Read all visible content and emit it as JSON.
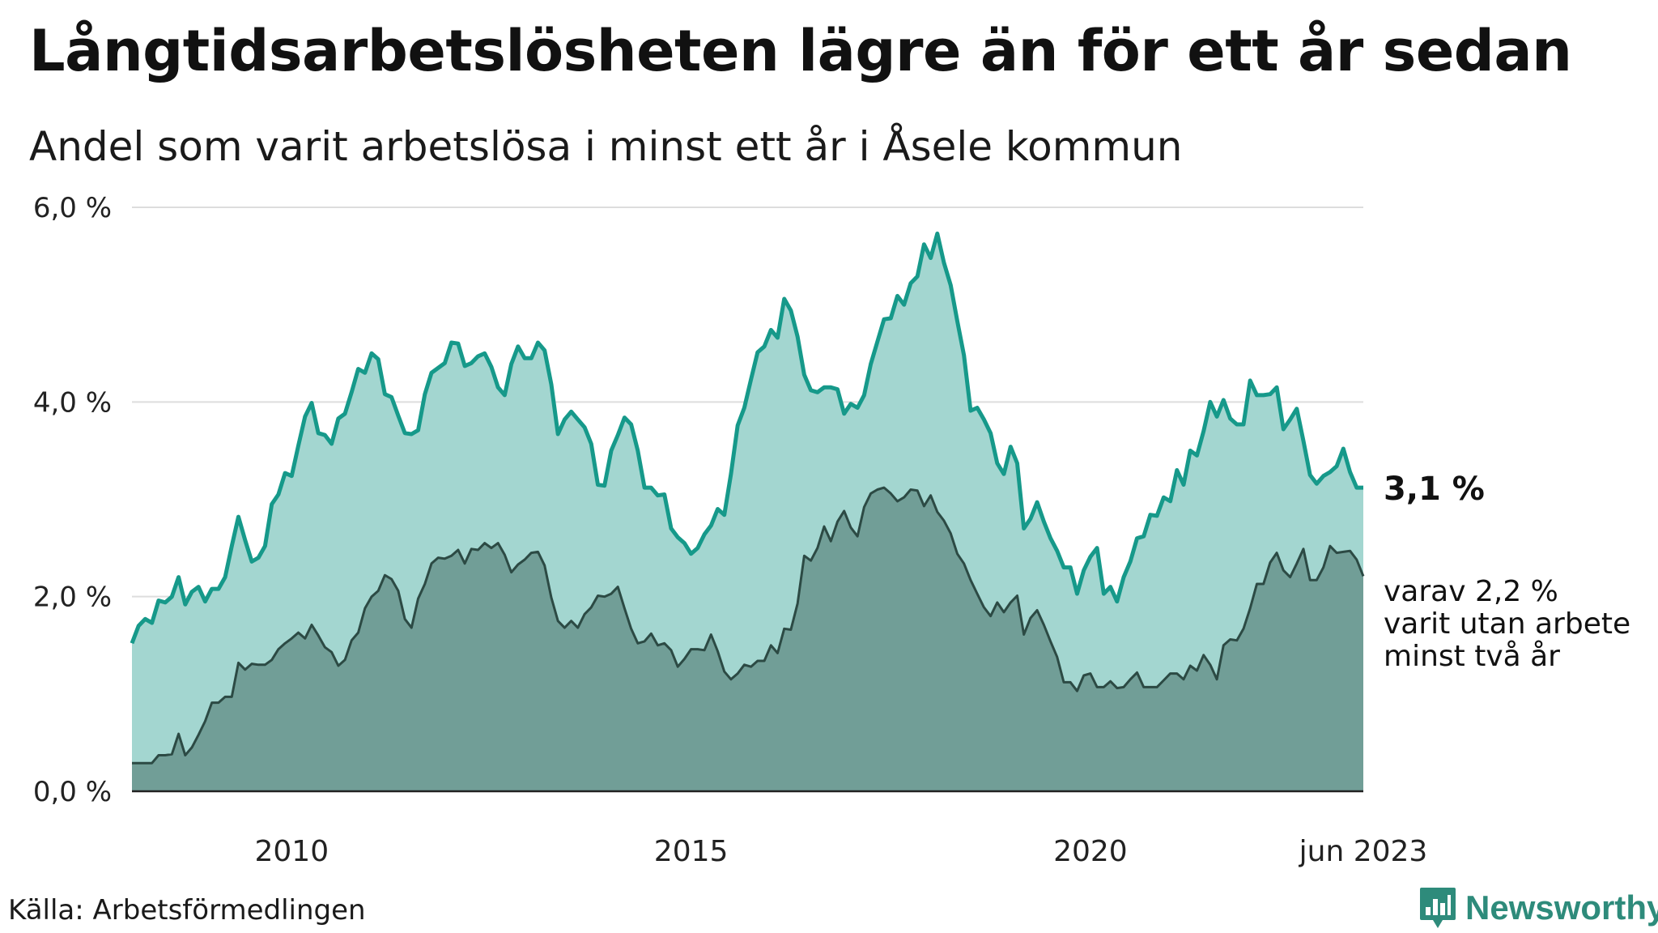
{
  "header": {
    "title": "Långtidsarbetslösheten lägre än för ett år sedan",
    "subtitle": "Andel som varit arbetslösa i minst ett år i Åsele kommun"
  },
  "footer": {
    "source": "Källa: Arbetsförmedlingen",
    "brand": "Newsworthy"
  },
  "colors": {
    "series1_line": "#16998a",
    "series1_fill": "#a3d6d0",
    "series2_line": "#2c4a44",
    "series2_fill": "#719e97",
    "grid": "#dddddd",
    "brand": "#2e8b7b"
  },
  "icons": {
    "brand_logo": "bar-chart-badge-icon"
  },
  "chart_data": {
    "type": "area",
    "x_start": "2008-01",
    "x_end": "2023-06",
    "ylim": [
      0,
      6
    ],
    "y_ticks": [
      "0,0 %",
      "2,0 %",
      "4,0 %",
      "6,0 %"
    ],
    "x_ticks": [
      {
        "label": "2010",
        "date": "2010-01"
      },
      {
        "label": "2015",
        "date": "2015-01"
      },
      {
        "label": "2020",
        "date": "2020-01"
      },
      {
        "label": "jun 2023",
        "date": "2023-06"
      }
    ],
    "grid": true,
    "annotations": {
      "series1_end_label": "3,1 %",
      "series2_end_label": [
        "varav 2,2 %",
        "varit utan arbete",
        "minst två år"
      ]
    },
    "series": [
      {
        "values": [
          1.52,
          1.7,
          1.77,
          1.73,
          1.96,
          1.94,
          2.0,
          2.2,
          1.92,
          2.05,
          2.1,
          1.95,
          2.08,
          2.08,
          2.2,
          2.52,
          2.82,
          2.58,
          2.36,
          2.4,
          2.52,
          2.95,
          3.05,
          3.27,
          3.24,
          3.55,
          3.85,
          3.99,
          3.68,
          3.66,
          3.57,
          3.83,
          3.88,
          4.1,
          4.34,
          4.3,
          4.5,
          4.44,
          4.08,
          4.05,
          3.86,
          3.68,
          3.67,
          3.71,
          4.08,
          4.3,
          4.35,
          4.4,
          4.61,
          4.6,
          4.37,
          4.4,
          4.47,
          4.5,
          4.36,
          4.15,
          4.07,
          4.39,
          4.57,
          4.45,
          4.45,
          4.61,
          4.53,
          4.18,
          3.67,
          3.82,
          3.9,
          3.82,
          3.74,
          3.57,
          3.15,
          3.14,
          3.5,
          3.66,
          3.84,
          3.77,
          3.5,
          3.12,
          3.12,
          3.04,
          3.05,
          2.7,
          2.61,
          2.55,
          2.44,
          2.5,
          2.64,
          2.73,
          2.9,
          2.84,
          3.26,
          3.76,
          3.94,
          4.23,
          4.51,
          4.57,
          4.74,
          4.66,
          5.06,
          4.94,
          4.67,
          4.28,
          4.12,
          4.1,
          4.15,
          4.15,
          4.13,
          3.88,
          3.98,
          3.94,
          4.07,
          4.39,
          4.62,
          4.85,
          4.86,
          5.09,
          5.0,
          5.22,
          5.29,
          5.62,
          5.48,
          5.73,
          5.43,
          5.2,
          4.83,
          4.48,
          3.91,
          3.94,
          3.82,
          3.68,
          3.37,
          3.26,
          3.54,
          3.37,
          2.7,
          2.8,
          2.97,
          2.77,
          2.6,
          2.47,
          2.3,
          2.3,
          2.03,
          2.27,
          2.41,
          2.5,
          2.03,
          2.1,
          1.95,
          2.2,
          2.36,
          2.6,
          2.62,
          2.84,
          2.83,
          3.02,
          2.98,
          3.3,
          3.15,
          3.5,
          3.45,
          3.7,
          4.0,
          3.85,
          4.02,
          3.83,
          3.77,
          3.77,
          4.22,
          4.07,
          4.07,
          4.08,
          4.15,
          3.72,
          3.82,
          3.93,
          3.6,
          3.25,
          3.16,
          3.24,
          3.28,
          3.34,
          3.52,
          3.28,
          3.12,
          3.12
        ]
      },
      {
        "values": [
          0.29,
          0.29,
          0.29,
          0.29,
          0.37,
          0.37,
          0.38,
          0.59,
          0.37,
          0.45,
          0.58,
          0.72,
          0.91,
          0.91,
          0.97,
          0.97,
          1.32,
          1.25,
          1.31,
          1.3,
          1.3,
          1.35,
          1.46,
          1.52,
          1.57,
          1.63,
          1.57,
          1.71,
          1.6,
          1.48,
          1.43,
          1.29,
          1.35,
          1.55,
          1.63,
          1.88,
          2.0,
          2.06,
          2.22,
          2.18,
          2.06,
          1.77,
          1.68,
          1.98,
          2.13,
          2.34,
          2.4,
          2.39,
          2.42,
          2.48,
          2.34,
          2.49,
          2.48,
          2.55,
          2.5,
          2.55,
          2.43,
          2.25,
          2.33,
          2.38,
          2.45,
          2.46,
          2.32,
          1.99,
          1.75,
          1.68,
          1.75,
          1.68,
          1.82,
          1.89,
          2.01,
          2.0,
          2.03,
          2.1,
          1.88,
          1.67,
          1.52,
          1.54,
          1.62,
          1.5,
          1.52,
          1.45,
          1.28,
          1.36,
          1.46,
          1.46,
          1.45,
          1.61,
          1.44,
          1.23,
          1.15,
          1.21,
          1.3,
          1.28,
          1.34,
          1.34,
          1.5,
          1.42,
          1.67,
          1.66,
          1.93,
          2.42,
          2.37,
          2.5,
          2.72,
          2.57,
          2.77,
          2.88,
          2.71,
          2.62,
          2.92,
          3.06,
          3.1,
          3.12,
          3.06,
          2.98,
          3.02,
          3.1,
          3.09,
          2.93,
          3.04,
          2.87,
          2.78,
          2.65,
          2.44,
          2.34,
          2.17,
          2.03,
          1.89,
          1.8,
          1.94,
          1.84,
          1.94,
          2.01,
          1.61,
          1.78,
          1.86,
          1.71,
          1.54,
          1.38,
          1.12,
          1.12,
          1.03,
          1.19,
          1.21,
          1.07,
          1.07,
          1.13,
          1.06,
          1.07,
          1.15,
          1.22,
          1.07,
          1.07,
          1.07,
          1.14,
          1.21,
          1.21,
          1.15,
          1.29,
          1.24,
          1.4,
          1.3,
          1.15,
          1.5,
          1.56,
          1.55,
          1.67,
          1.88,
          2.13,
          2.13,
          2.35,
          2.45,
          2.27,
          2.2,
          2.34,
          2.49,
          2.17,
          2.17,
          2.3,
          2.52,
          2.45,
          2.46,
          2.47,
          2.38,
          2.21
        ]
      }
    ]
  }
}
